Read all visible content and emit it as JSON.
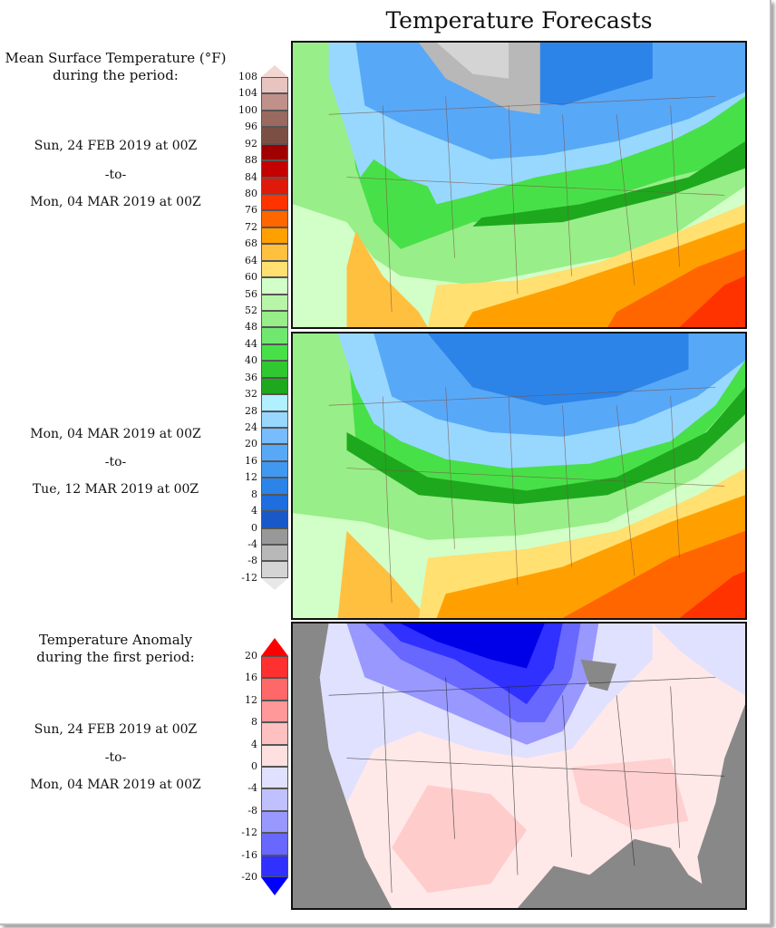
{
  "title": "Temperature Forecasts",
  "mean_legend": {
    "heading": [
      "Mean Surface Temperature (°F)",
      "during the period:"
    ],
    "period1": {
      "start": "Sun, 24 FEB 2019 at 00Z",
      "sep": "-to-",
      "end": "Mon, 04 MAR 2019 at 00Z"
    },
    "period2": {
      "start": "Mon, 04 MAR 2019 at 00Z",
      "sep": "-to-",
      "end": "Tue, 12 MAR 2019 at 00Z"
    },
    "ticks": [
      "108",
      "104",
      "100",
      "96",
      "92",
      "88",
      "84",
      "80",
      "76",
      "72",
      "68",
      "64",
      "60",
      "56",
      "52",
      "48",
      "44",
      "40",
      "36",
      "32",
      "28",
      "24",
      "20",
      "16",
      "12",
      "8",
      "4",
      "0",
      "-4",
      "-8",
      "-12"
    ],
    "colors": [
      "#e8c4c0",
      "#c0908a",
      "#9a6a60",
      "#7a5044",
      "#a00000",
      "#c40000",
      "#e01a0a",
      "#ff3300",
      "#ff6600",
      "#ffa000",
      "#ffc040",
      "#ffe070",
      "#d2ffc8",
      "#b8f5a8",
      "#98ee88",
      "#70e870",
      "#48e048",
      "#30c830",
      "#1ea81e",
      "#b0f0ff",
      "#98d8ff",
      "#78bcff",
      "#58a8f8",
      "#4098f0",
      "#2c84e8",
      "#1e6ee0",
      "#1858c8",
      "#989898",
      "#b8b8b8",
      "#d4d4d4"
    ],
    "tip_top": "#f2d6d2",
    "tip_bottom": "#e8e8e8"
  },
  "anomaly_legend": {
    "heading": [
      "Temperature Anomaly",
      "during the first period:"
    ],
    "period": {
      "start": "Sun, 24 FEB 2019 at 00Z",
      "sep": "-to-",
      "end": "Mon, 04 MAR 2019 at 00Z"
    },
    "ticks": [
      "20",
      "16",
      "12",
      "8",
      "4",
      "0",
      "-4",
      "-8",
      "-12",
      "-16",
      "-20"
    ],
    "colors": [
      "#ff3030",
      "#ff6868",
      "#ff9898",
      "#ffc0c0",
      "#ffe0e0",
      "#e0e0ff",
      "#c0c0ff",
      "#9898ff",
      "#6868ff",
      "#3030ff"
    ],
    "tip_top": "#ff0000",
    "tip_bottom": "#0000ff"
  },
  "chart_data": [
    {
      "type": "heatmap",
      "title": "Mean Surface Temperature (°F)",
      "period": "Sun, 24 FEB 2019 at 00Z -to- Mon, 04 MAR 2019 at 00Z",
      "colorbar_range": [
        -12,
        108
      ],
      "colorbar_step": 4
    },
    {
      "type": "heatmap",
      "title": "Mean Surface Temperature (°F)",
      "period": "Mon, 04 MAR 2019 at 00Z -to- Tue, 12 MAR 2019 at 00Z",
      "colorbar_range": [
        -12,
        108
      ],
      "colorbar_step": 4
    },
    {
      "type": "heatmap",
      "title": "Temperature Anomaly",
      "period": "Sun, 24 FEB 2019 at 00Z -to- Mon, 04 MAR 2019 at 00Z",
      "colorbar_range": [
        -20,
        20
      ],
      "colorbar_step": 4
    }
  ]
}
